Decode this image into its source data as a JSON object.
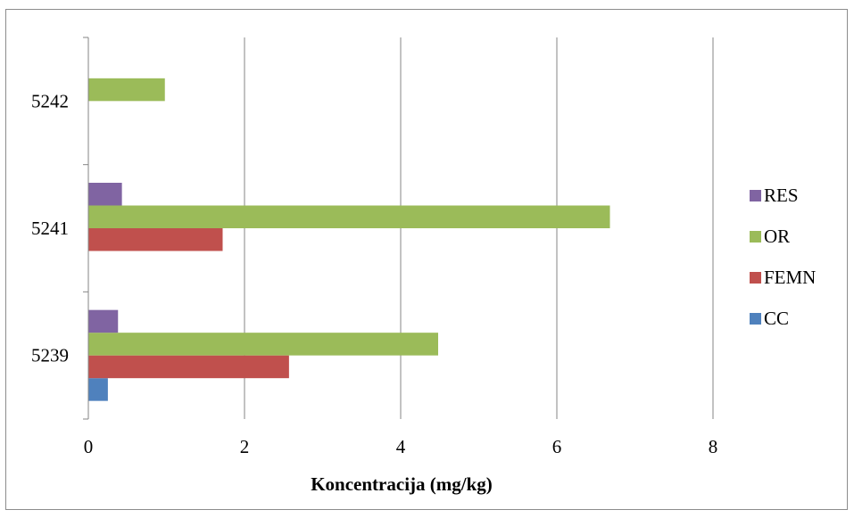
{
  "chart_data": {
    "type": "bar",
    "orientation": "horizontal",
    "categories": [
      "5239",
      "5241",
      "5242"
    ],
    "series": [
      {
        "name": "CC",
        "color": "#4f81bd",
        "values": [
          0.25,
          0,
          0
        ]
      },
      {
        "name": "FEMN",
        "color": "#c0504d",
        "values": [
          2.57,
          1.72,
          0
        ]
      },
      {
        "name": "OR",
        "color": "#9bbb59",
        "values": [
          4.48,
          6.68,
          0.98
        ]
      },
      {
        "name": "RES",
        "color": "#8064a2",
        "values": [
          0.38,
          0.43,
          0
        ]
      }
    ],
    "x_ticks": [
      "0",
      "2",
      "4",
      "6",
      "8"
    ],
    "xlim": [
      0,
      8
    ],
    "xlabel": "Koncentracija (mg/kg)",
    "legend_position": "right",
    "grid": "vertical"
  }
}
